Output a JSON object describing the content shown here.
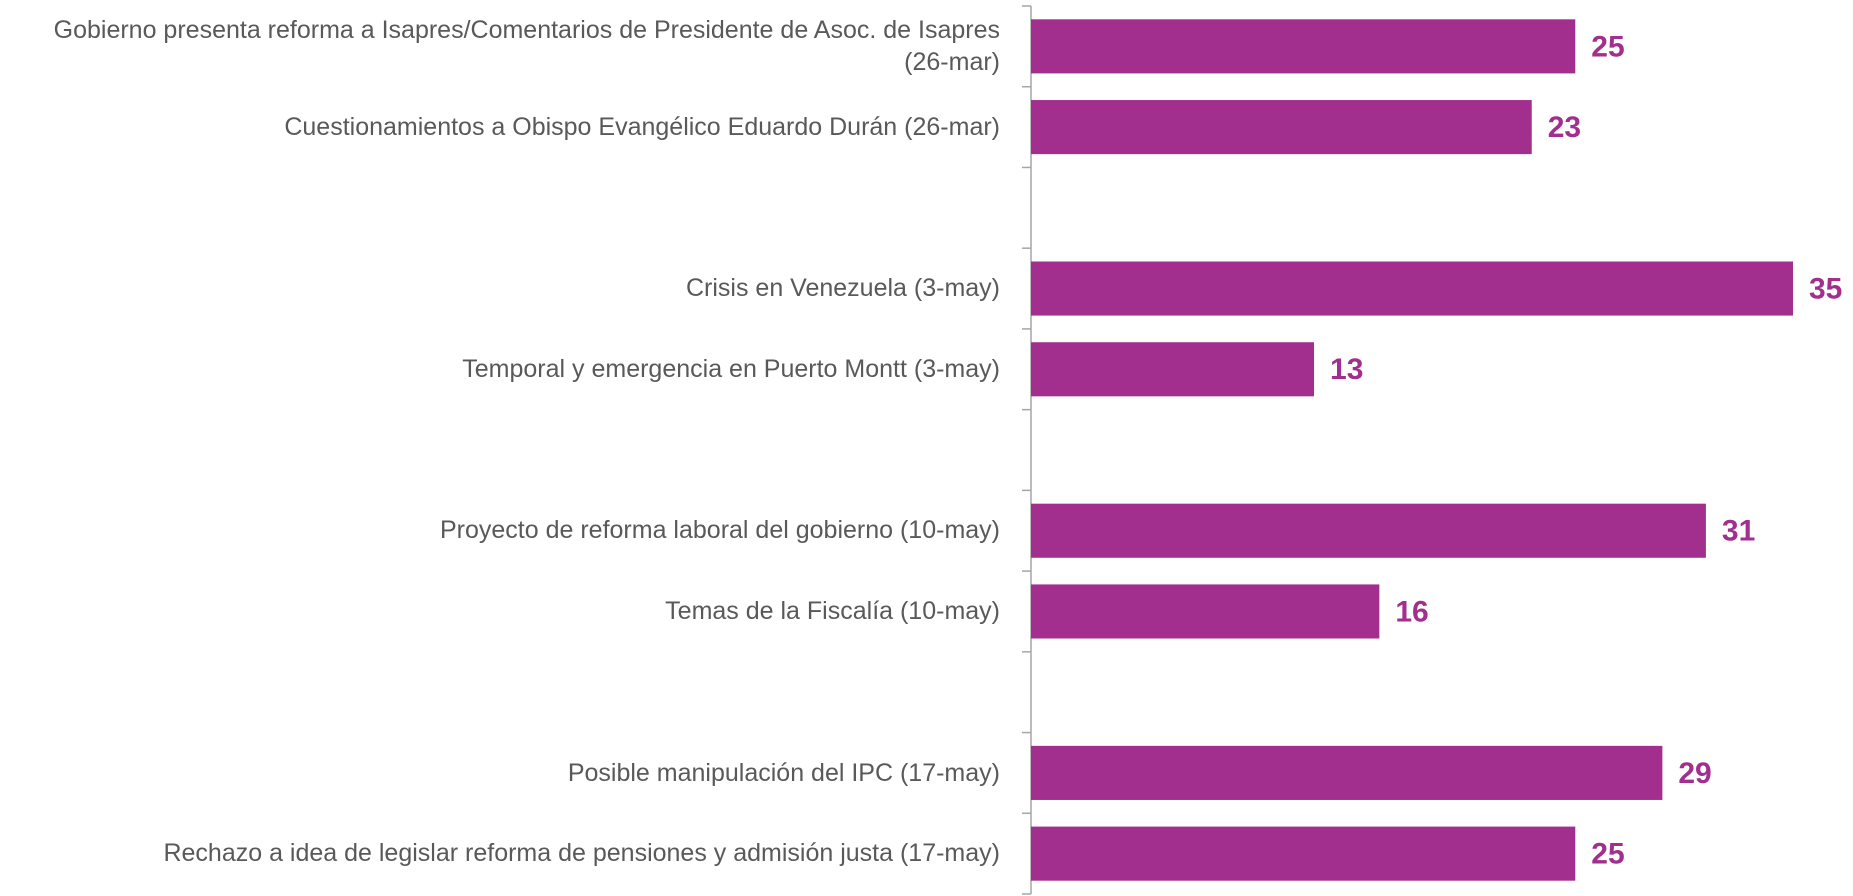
{
  "chart_data": {
    "type": "bar",
    "orientation": "horizontal",
    "categories": [
      "Gobierno presenta reforma a Isapres/Comentarios de Presidente de Asoc. de Isapres (26-mar)",
      "Cuestionamientos a Obispo Evangélico Eduardo Durán (26-mar)",
      null,
      "Crisis en Venezuela (3-may)",
      "Temporal y emergencia en Puerto Montt (3-may)",
      null,
      "Proyecto de reforma laboral del gobierno (10-may)",
      "Temas de la Fiscalía (10-may)",
      null,
      "Posible manipulación del IPC (17-may)",
      "Rechazo a idea de legislar reforma de pensiones y admisión justa (17-may)"
    ],
    "values": [
      25,
      23,
      null,
      35,
      13,
      null,
      31,
      16,
      null,
      29,
      25
    ],
    "color": "#a22e8e"
  }
}
